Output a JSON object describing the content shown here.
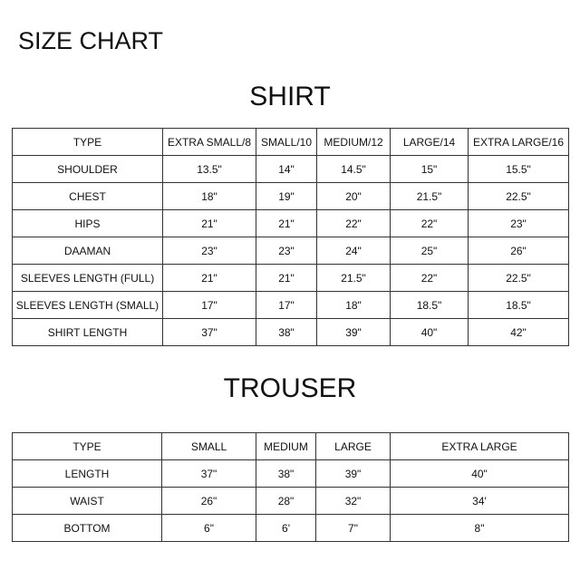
{
  "header": {
    "title": "SIZE CHART"
  },
  "shirt": {
    "title": "SHIRT",
    "rows": [
      [
        "TYPE",
        "EXTRA SMALL/8",
        "SMALL/10",
        "MEDIUM/12",
        "LARGE/14",
        "EXTRA LARGE/16"
      ],
      [
        "SHOULDER",
        "13.5\"",
        "14\"",
        "14.5\"",
        "15\"",
        "15.5\""
      ],
      [
        "CHEST",
        "18\"",
        "19\"",
        "20\"",
        "21.5\"",
        "22.5\""
      ],
      [
        "HIPS",
        "21\"",
        "21\"",
        "22\"",
        "22\"",
        "23\""
      ],
      [
        "DAAMAN",
        "23\"",
        "23\"",
        "24\"",
        "25\"",
        "26\""
      ],
      [
        "SLEEVES LENGTH (FULL)",
        "21\"",
        "21\"",
        "21.5\"",
        "22\"",
        "22.5\""
      ],
      [
        "SLEEVES LENGTH (SMALL)",
        "17\"",
        "17\"",
        "18\"",
        "18.5\"",
        "18.5\""
      ],
      [
        "SHIRT LENGTH",
        "37\"",
        "38\"",
        "39\"",
        "40\"",
        "42\""
      ]
    ]
  },
  "trouser": {
    "title": "TROUSER",
    "rows": [
      [
        "TYPE",
        "SMALL",
        "MEDIUM",
        "LARGE",
        "EXTRA LARGE"
      ],
      [
        "LENGTH",
        "37\"",
        "38\"",
        "39\"",
        "40\""
      ],
      [
        "WAIST",
        "26\"",
        "28\"",
        "32\"",
        "34'"
      ],
      [
        "BOTTOM",
        "6\"",
        "6'",
        "7\"",
        "8\""
      ]
    ]
  }
}
